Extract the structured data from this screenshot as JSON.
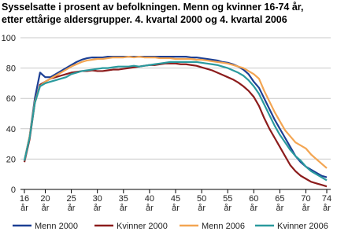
{
  "chart_data": {
    "type": "line",
    "title": [
      "Sysselsatte i prosent av befolkningen. Menn og kvinner 16-74 år,",
      "etter ettårige aldersgrupper. 4. kvartal 2000 og 4. kvartal 2006"
    ],
    "x": [
      16,
      17,
      18,
      19,
      20,
      21,
      22,
      23,
      24,
      25,
      26,
      27,
      28,
      29,
      30,
      31,
      32,
      33,
      34,
      35,
      36,
      37,
      38,
      39,
      40,
      41,
      42,
      43,
      44,
      45,
      46,
      47,
      48,
      49,
      50,
      51,
      52,
      53,
      54,
      55,
      56,
      57,
      58,
      59,
      60,
      61,
      62,
      63,
      64,
      65,
      66,
      67,
      68,
      69,
      70,
      71,
      72,
      73,
      74
    ],
    "series": [
      {
        "name": "Menn 2000",
        "color": "#1c3f94",
        "values": [
          19,
          35,
          60,
          77,
          74,
          74,
          76,
          78,
          80,
          82,
          84,
          85.5,
          86.5,
          87,
          87,
          87,
          87.5,
          87.5,
          87.5,
          87.5,
          87.5,
          87.5,
          87.5,
          87.5,
          87.5,
          87.5,
          87.5,
          87.5,
          87.5,
          87.5,
          87.5,
          87.5,
          87,
          87,
          86.5,
          86,
          85.5,
          85,
          84,
          83.5,
          82.5,
          81,
          79,
          76,
          71,
          67,
          60,
          53,
          46,
          40,
          34,
          28,
          22,
          18,
          15,
          13,
          11,
          9,
          8
        ]
      },
      {
        "name": "Kvinner 2000",
        "color": "#8c1c1c",
        "values": [
          18,
          33,
          57,
          69,
          71,
          73,
          74,
          75,
          76,
          77,
          77.5,
          78,
          78,
          78.5,
          78,
          78,
          78.5,
          79,
          79,
          79.5,
          80,
          80.5,
          81,
          81.5,
          82,
          82,
          82.5,
          83,
          83,
          83,
          82.5,
          82.5,
          82,
          81.5,
          80.5,
          79.5,
          78.5,
          77,
          75.5,
          74,
          72.5,
          70.5,
          68,
          65,
          61,
          55,
          47,
          40,
          34,
          28,
          22,
          16,
          12,
          9,
          7,
          5,
          4,
          3,
          2
        ]
      },
      {
        "name": "Menn 2006",
        "color": "#f3a552",
        "values": [
          19,
          35,
          58,
          68,
          71,
          73,
          75,
          77,
          79,
          81,
          82.5,
          84,
          85,
          85.5,
          86,
          86,
          86.5,
          87,
          87,
          87,
          87.5,
          87,
          87.5,
          87,
          87,
          87,
          86.5,
          86.5,
          86.5,
          86,
          86,
          86,
          86,
          85.5,
          85.5,
          85,
          84.5,
          84,
          83.5,
          83,
          82,
          81,
          80,
          78,
          76,
          73,
          65,
          58,
          51,
          45,
          39,
          35,
          31,
          29,
          27,
          23,
          20,
          17,
          14
        ]
      },
      {
        "name": "Kvinner 2006",
        "color": "#2a9a9e",
        "values": [
          19,
          34,
          57,
          68,
          70,
          71,
          72,
          73,
          74,
          76,
          77,
          78,
          78.5,
          79,
          79.5,
          80,
          80,
          80.5,
          81,
          81,
          81,
          81.5,
          81,
          81.5,
          82,
          82.5,
          83,
          83.5,
          84,
          84,
          84,
          84,
          84,
          84,
          83.5,
          83,
          82.5,
          82,
          81,
          80,
          78.5,
          77,
          75,
          72,
          68,
          63,
          56,
          49,
          42,
          36,
          31,
          26,
          22,
          19,
          15,
          12,
          10,
          8,
          6
        ]
      }
    ],
    "xlim": [
      16,
      74
    ],
    "xticks": [
      {
        "value": 16,
        "label": "16 år"
      },
      {
        "value": 20,
        "label": "20 år"
      },
      {
        "value": 25,
        "label": "25 år"
      },
      {
        "value": 30,
        "label": "30 år"
      },
      {
        "value": 35,
        "label": "35 år"
      },
      {
        "value": 40,
        "label": "40 år"
      },
      {
        "value": 45,
        "label": "45 år"
      },
      {
        "value": 50,
        "label": "50 år"
      },
      {
        "value": 55,
        "label": "55 år"
      },
      {
        "value": 60,
        "label": "60 år"
      },
      {
        "value": 65,
        "label": "65 år"
      },
      {
        "value": 70,
        "label": "70 år"
      },
      {
        "value": 74,
        "label": "74 år"
      }
    ],
    "ylim": [
      0,
      100
    ],
    "yticks": [
      0,
      20,
      40,
      60,
      80,
      100
    ],
    "grid": true
  }
}
